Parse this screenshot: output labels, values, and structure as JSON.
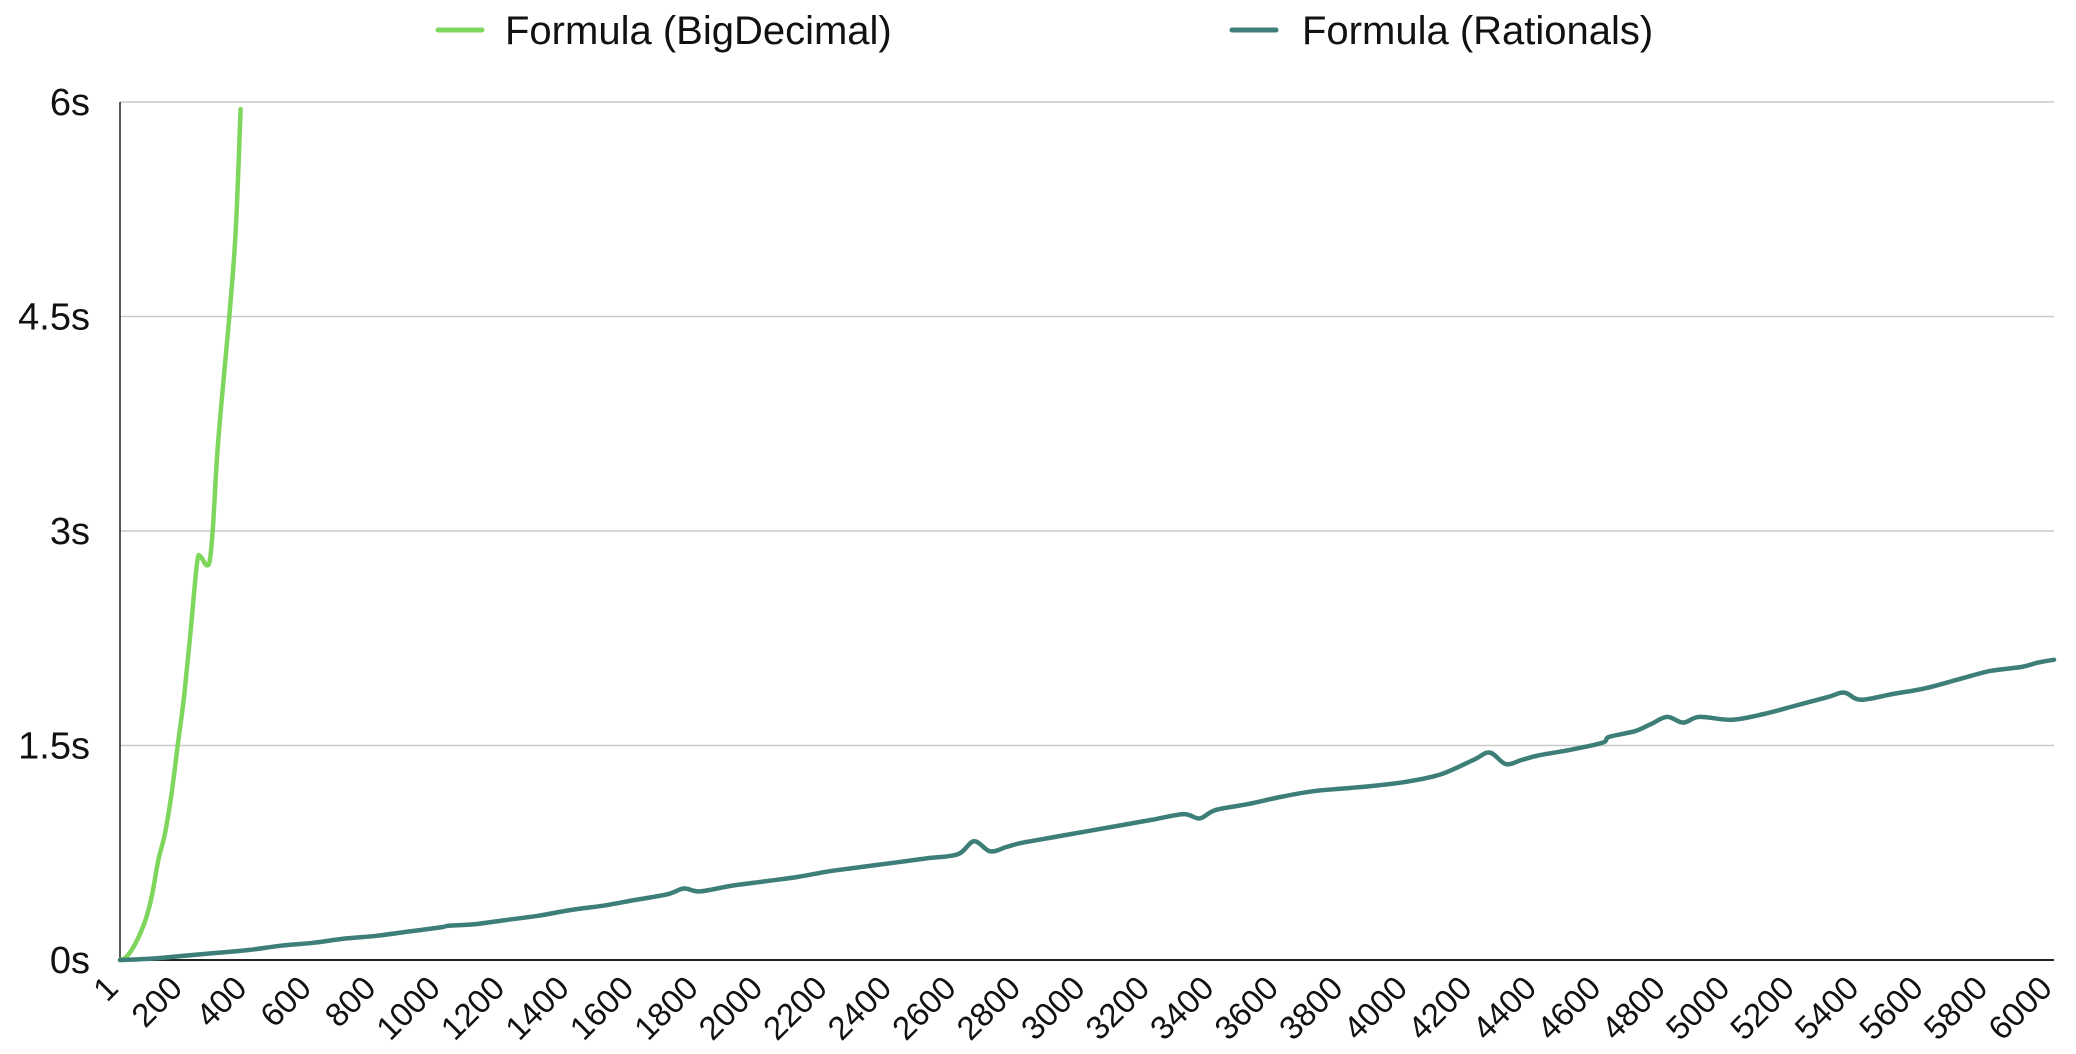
{
  "chart_data": {
    "type": "line",
    "title": "",
    "xlabel": "",
    "ylabel": "",
    "xlim": [
      1,
      6000
    ],
    "ylim": [
      0,
      6
    ],
    "grid": true,
    "legend_position": "top",
    "y_ticks": [
      {
        "value": 0,
        "label": "0s"
      },
      {
        "value": 1.5,
        "label": "1.5s"
      },
      {
        "value": 3,
        "label": "3s"
      },
      {
        "value": 4.5,
        "label": "4.5s"
      },
      {
        "value": 6,
        "label": "6s"
      }
    ],
    "x_ticks": [
      {
        "value": 1,
        "label": "1"
      },
      {
        "value": 200,
        "label": "200"
      },
      {
        "value": 400,
        "label": "400"
      },
      {
        "value": 600,
        "label": "600"
      },
      {
        "value": 800,
        "label": "800"
      },
      {
        "value": 1000,
        "label": "1000"
      },
      {
        "value": 1200,
        "label": "1200"
      },
      {
        "value": 1400,
        "label": "1400"
      },
      {
        "value": 1600,
        "label": "1600"
      },
      {
        "value": 1800,
        "label": "1800"
      },
      {
        "value": 2000,
        "label": "2000"
      },
      {
        "value": 2200,
        "label": "2200"
      },
      {
        "value": 2400,
        "label": "2400"
      },
      {
        "value": 2600,
        "label": "2600"
      },
      {
        "value": 2800,
        "label": "2800"
      },
      {
        "value": 3000,
        "label": "3000"
      },
      {
        "value": 3200,
        "label": "3200"
      },
      {
        "value": 3400,
        "label": "3400"
      },
      {
        "value": 3600,
        "label": "3600"
      },
      {
        "value": 3800,
        "label": "3800"
      },
      {
        "value": 4000,
        "label": "4000"
      },
      {
        "value": 4200,
        "label": "4200"
      },
      {
        "value": 4400,
        "label": "4400"
      },
      {
        "value": 4600,
        "label": "4600"
      },
      {
        "value": 4800,
        "label": "4800"
      },
      {
        "value": 5000,
        "label": "5000"
      },
      {
        "value": 5200,
        "label": "5200"
      },
      {
        "value": 5400,
        "label": "5400"
      },
      {
        "value": 5600,
        "label": "5600"
      },
      {
        "value": 5800,
        "label": "5800"
      },
      {
        "value": 6000,
        "label": "6000"
      }
    ],
    "series": [
      {
        "name": "Formula (BigDecimal)",
        "color": "#7fd65c",
        "x": [
          1,
          20,
          50,
          80,
          100,
          120,
          140,
          160,
          180,
          200,
          220,
          240,
          250,
          260,
          270,
          280,
          290,
          300,
          310,
          320,
          340,
          360,
          375
        ],
        "y": [
          0,
          0.02,
          0.12,
          0.28,
          0.45,
          0.7,
          0.88,
          1.15,
          1.5,
          1.85,
          2.3,
          2.78,
          2.82,
          2.79,
          2.76,
          2.8,
          3.05,
          3.45,
          3.75,
          4.0,
          4.5,
          5.1,
          5.95
        ]
      },
      {
        "name": "Formula (Rationals)",
        "color": "#3d7f78",
        "x": [
          1,
          100,
          200,
          300,
          400,
          500,
          600,
          700,
          800,
          900,
          1000,
          1020,
          1100,
          1200,
          1300,
          1400,
          1500,
          1600,
          1700,
          1750,
          1800,
          1900,
          2000,
          2100,
          2200,
          2300,
          2400,
          2500,
          2600,
          2650,
          2700,
          2750,
          2800,
          2900,
          3000,
          3100,
          3200,
          3300,
          3350,
          3400,
          3500,
          3600,
          3700,
          3800,
          3900,
          4000,
          4100,
          4200,
          4250,
          4300,
          4350,
          4400,
          4500,
          4600,
          4620,
          4700,
          4750,
          4800,
          4850,
          4900,
          5000,
          5100,
          5200,
          5300,
          5350,
          5400,
          5500,
          5600,
          5700,
          5800,
          5900,
          5950,
          6000
        ],
        "y": [
          0,
          0.01,
          0.03,
          0.05,
          0.07,
          0.1,
          0.12,
          0.15,
          0.17,
          0.2,
          0.23,
          0.24,
          0.25,
          0.28,
          0.31,
          0.35,
          0.38,
          0.42,
          0.46,
          0.5,
          0.48,
          0.52,
          0.55,
          0.58,
          0.62,
          0.65,
          0.68,
          0.71,
          0.74,
          0.83,
          0.76,
          0.79,
          0.82,
          0.86,
          0.9,
          0.94,
          0.98,
          1.02,
          0.99,
          1.05,
          1.09,
          1.14,
          1.18,
          1.2,
          1.22,
          1.25,
          1.3,
          1.4,
          1.45,
          1.37,
          1.4,
          1.43,
          1.47,
          1.52,
          1.56,
          1.6,
          1.65,
          1.7,
          1.66,
          1.7,
          1.68,
          1.72,
          1.78,
          1.84,
          1.87,
          1.82,
          1.86,
          1.9,
          1.96,
          2.02,
          2.05,
          2.08,
          2.1
        ]
      }
    ]
  }
}
